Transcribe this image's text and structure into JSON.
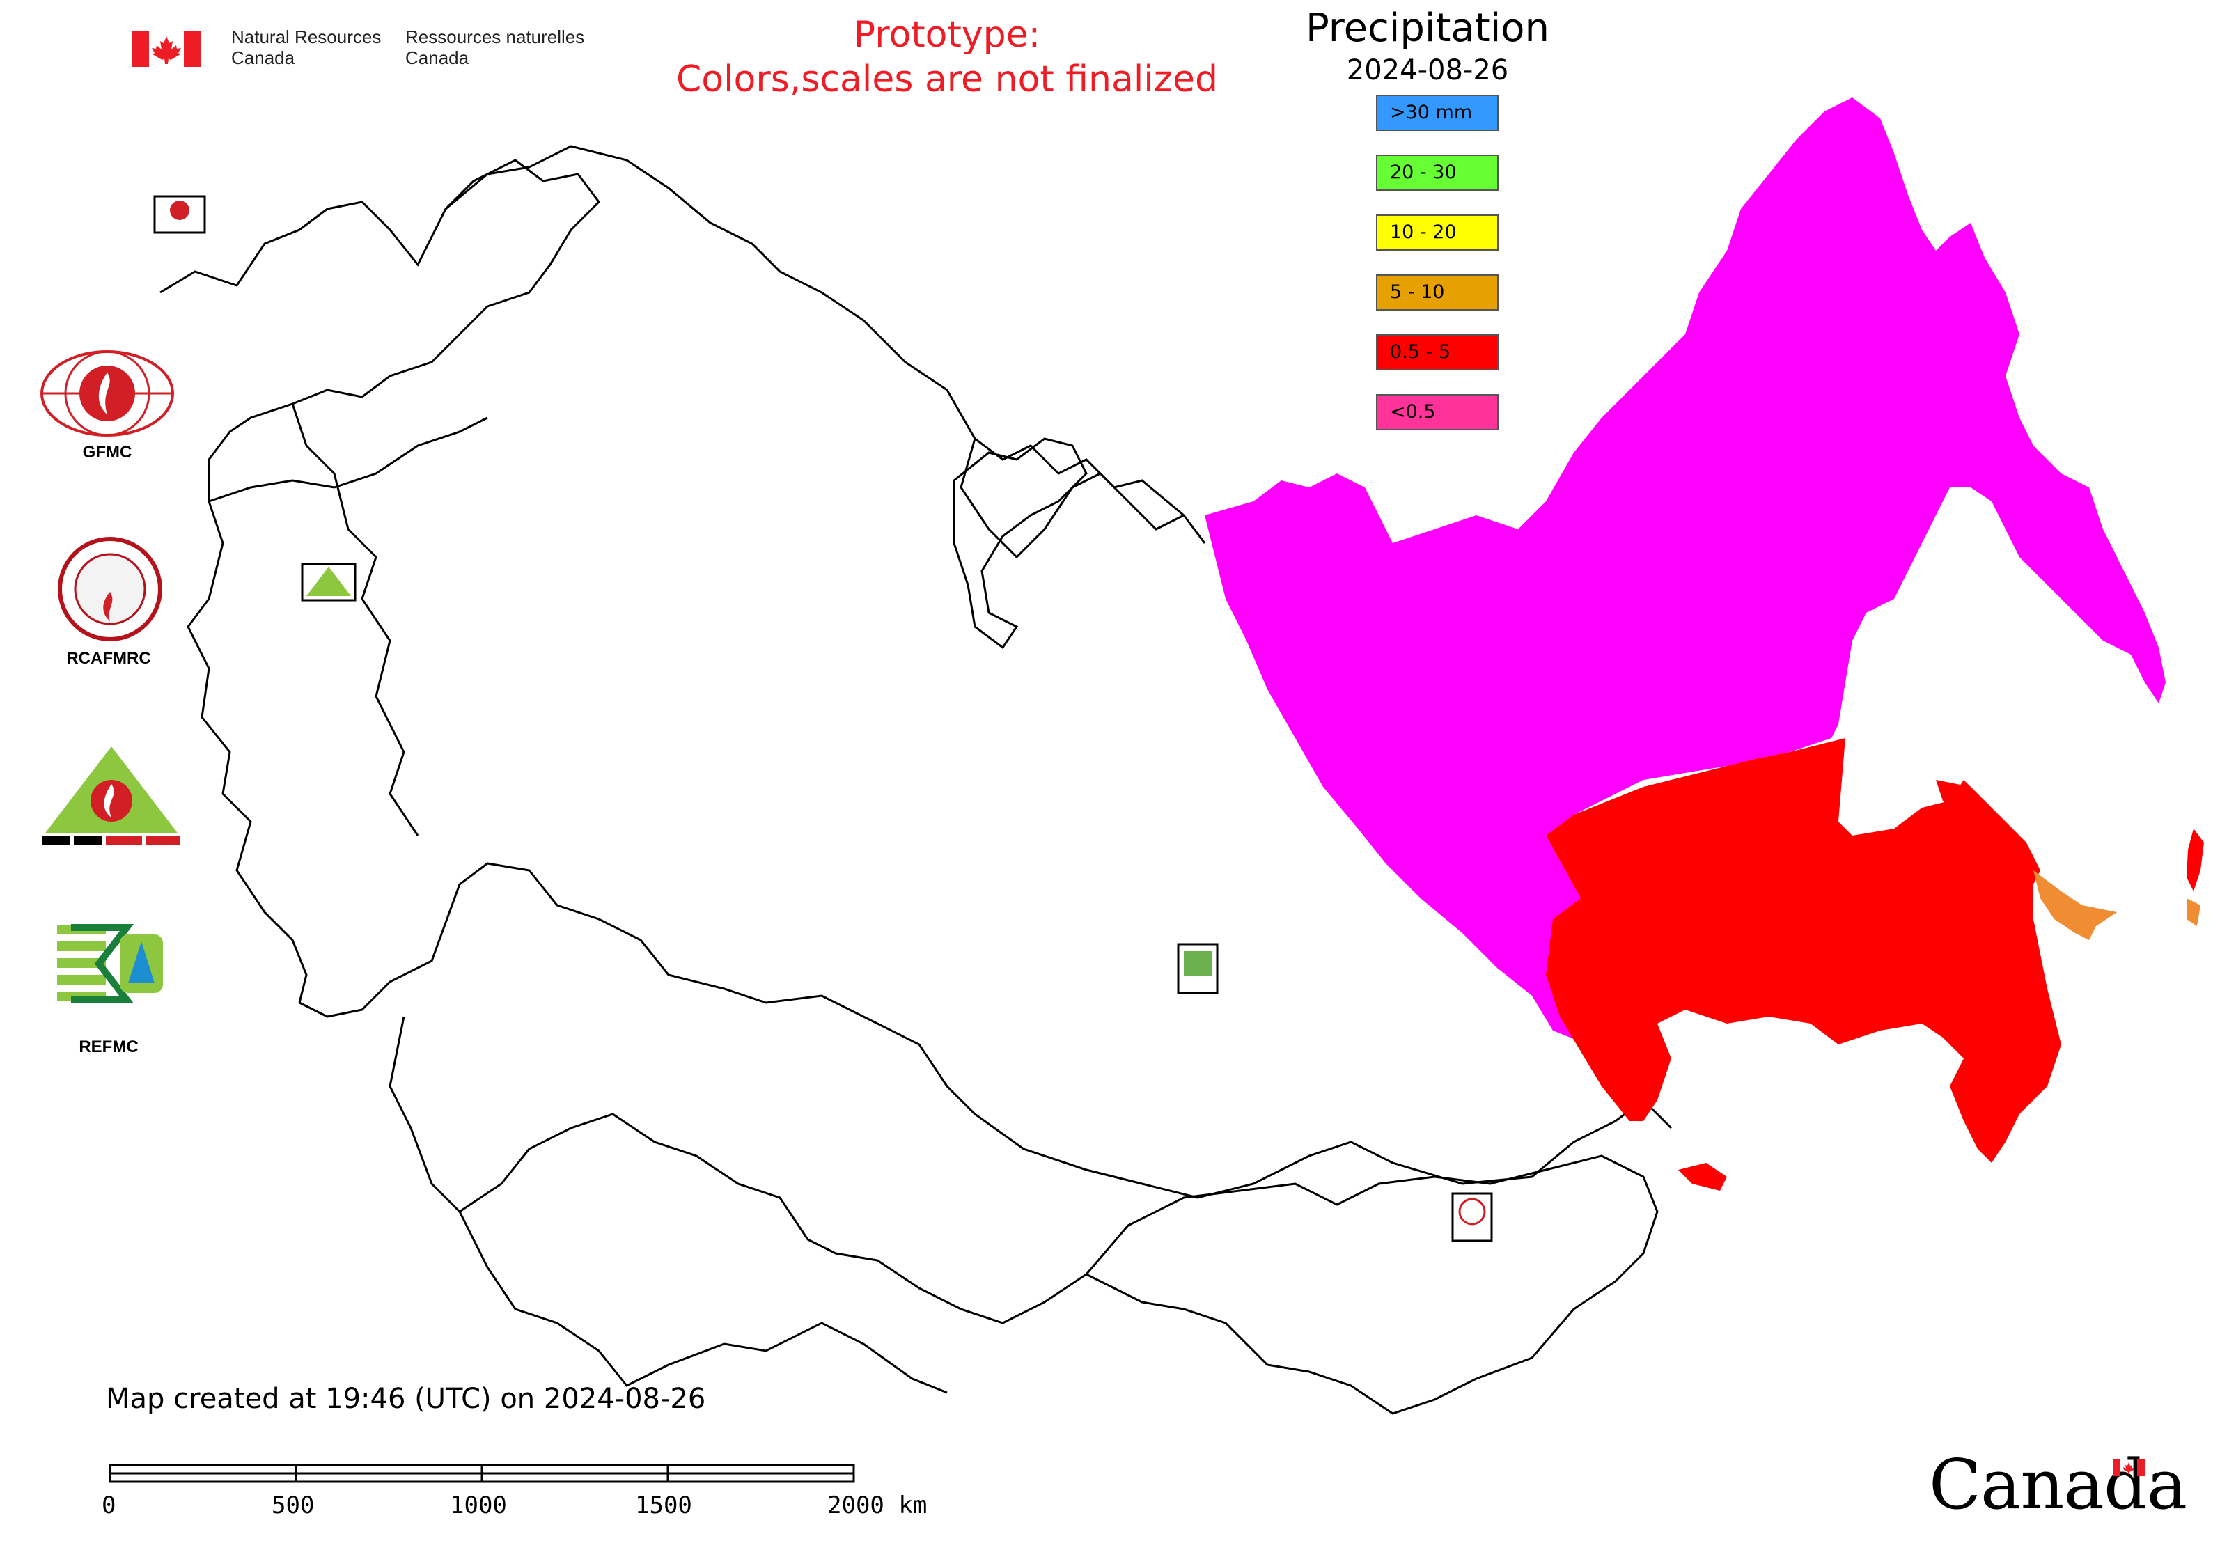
{
  "header": {
    "dept_en_line1": "Natural Resources",
    "dept_en_line2": "Canada",
    "dept_fr_line1": "Ressources naturelles",
    "dept_fr_line2": "Canada",
    "prototype_line1": "Prototype:",
    "prototype_line2": "Colors,scales are not finalized"
  },
  "legend": {
    "title": "Precipitation",
    "date": "2024-08-26",
    "items": [
      {
        "label": ">30 mm",
        "color": "#3399ff"
      },
      {
        "label": "20 - 30",
        "color": "#66ff33"
      },
      {
        "label": "10 - 20",
        "color": "#ffff00"
      },
      {
        "label": "5 - 10",
        "color": "#e6a000"
      },
      {
        "label": "0.5 - 5",
        "color": "#ff0000"
      },
      {
        "label": "<0.5",
        "color": "#ff3399"
      }
    ]
  },
  "map": {
    "region_colors": {
      "no_precip": "#ff00ff",
      "light_precip": "#ff0000",
      "moderate_precip": "#f08c32",
      "border": "#000000"
    }
  },
  "side_logos": [
    {
      "label": "GFMC",
      "icon": "gfmc-logo-icon"
    },
    {
      "label": "RCAFMRC",
      "icon": "rcafmrc-logo-icon"
    },
    {
      "label": "",
      "icon": "reefmc-logo-icon"
    },
    {
      "label": "REFMC",
      "icon": "refmc-logo-icon"
    }
  ],
  "footer": {
    "created_text": "Map created at 19:46 (UTC) on 2024-08-26",
    "scale_ticks": [
      "0",
      "500",
      "1000",
      "1500",
      "2000 km"
    ],
    "wordmark": "Canada"
  }
}
